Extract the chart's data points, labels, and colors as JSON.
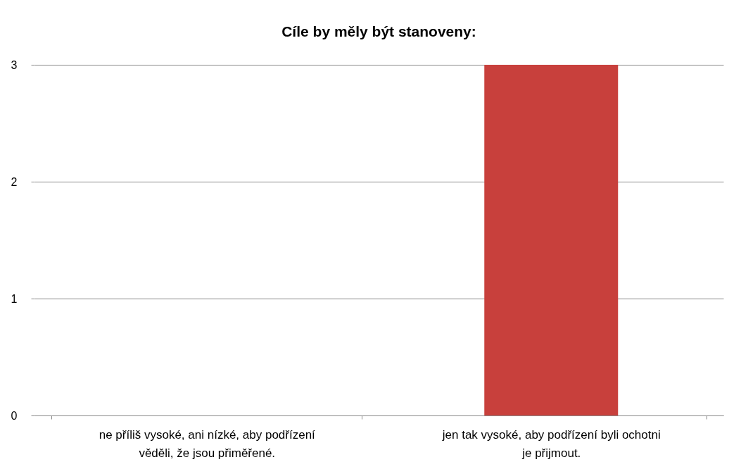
{
  "chart_data": {
    "type": "bar",
    "title": "Cíle by měly být stanoveny:",
    "categories": [
      "ne příliš vysoké, ani nízké, aby podřízení věděli, že jsou přiměřené.",
      "jen tak vysoké, aby podřízení byli ochotni je přijmout."
    ],
    "values": [
      0,
      3
    ],
    "color": "#c8403c",
    "ylim": [
      0,
      3
    ],
    "yticks": [
      0,
      1,
      2,
      3
    ],
    "grid": "y"
  }
}
